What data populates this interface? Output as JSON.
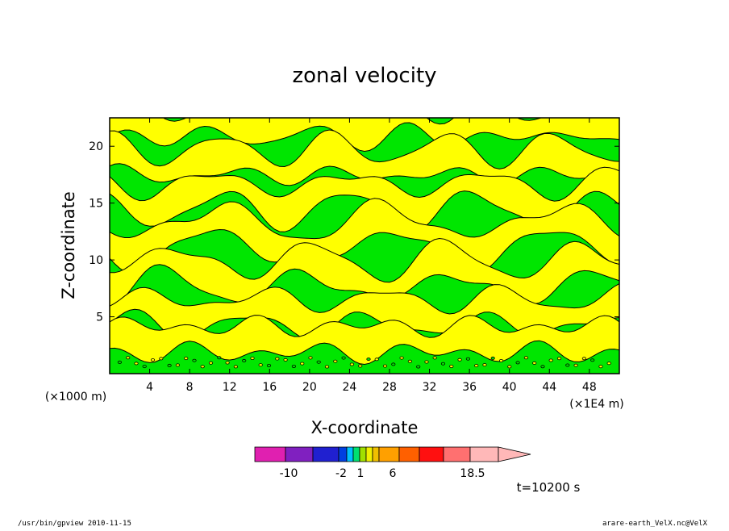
{
  "chart_data": {
    "type": "heatmap",
    "title": "zonal velocity",
    "xlabel": "X-coordinate",
    "ylabel": "Z-coordinate",
    "x_unit": "(×1E4 m)",
    "y_unit": "(×1000 m)",
    "xlim": [
      0,
      51
    ],
    "ylim": [
      0,
      22.5
    ],
    "x_ticks": [
      4,
      8,
      12,
      16,
      20,
      24,
      28,
      32,
      36,
      40,
      44,
      48
    ],
    "y_ticks": [
      5,
      10,
      15,
      20
    ],
    "time_label": "t=10200 s",
    "colorbar": {
      "levels": [
        {
          "color": "#e020b0"
        },
        {
          "color": "#8020c0"
        },
        {
          "color": "#2020d0"
        },
        {
          "color": "#0040e0"
        },
        {
          "color": "#00c0ff"
        },
        {
          "color": "#00e070"
        },
        {
          "color": "#a0e000"
        },
        {
          "color": "#f0f000"
        },
        {
          "color": "#f0c000"
        },
        {
          "color": "#ffa000"
        },
        {
          "color": "#ff6000"
        },
        {
          "color": "#ff1010"
        },
        {
          "color": "#ff7070"
        },
        {
          "color": "#ffb8b8"
        }
      ],
      "tick_labels": [
        "-10",
        "-2",
        "1",
        "6",
        "18.5"
      ]
    },
    "colors": {
      "positive": "#ffff00",
      "near_zero": "#00e600",
      "contour": "#000000"
    },
    "grid": false
  },
  "footer": {
    "left": "/usr/bin/gpview   2010-11-15",
    "right": "arare-earth_VelX.nc@VelX"
  }
}
